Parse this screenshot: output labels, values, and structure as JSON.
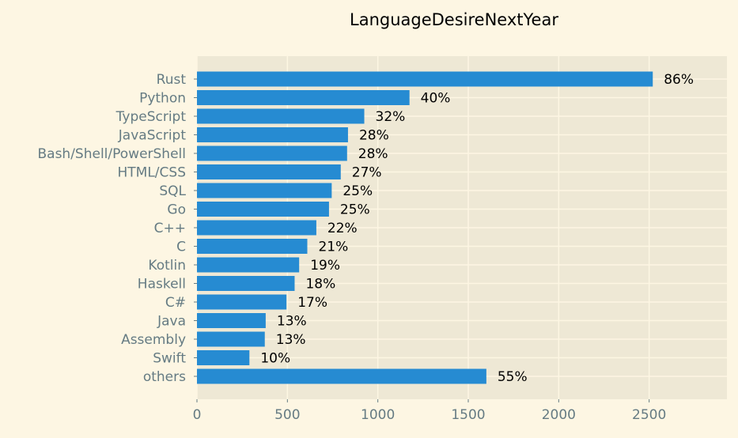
{
  "chart_data": {
    "type": "bar",
    "orientation": "horizontal",
    "title": "LanguageDesireNextYear",
    "xlabel": "",
    "ylabel": "",
    "categories": [
      "Rust",
      "Python",
      "TypeScript",
      "JavaScript",
      "Bash/Shell/PowerShell",
      "HTML/CSS",
      "SQL",
      "Go",
      "C++",
      "C",
      "Kotlin",
      "Haskell",
      "C#",
      "Java",
      "Assembly",
      "Swift",
      "others"
    ],
    "values": [
      2520,
      1175,
      925,
      835,
      830,
      795,
      745,
      730,
      660,
      610,
      565,
      540,
      495,
      380,
      375,
      290,
      1600
    ],
    "data_labels": [
      "86%",
      "40%",
      "32%",
      "28%",
      "28%",
      "27%",
      "25%",
      "25%",
      "22%",
      "21%",
      "19%",
      "18%",
      "17%",
      "13%",
      "13%",
      "10%",
      "55%"
    ],
    "xlim": [
      0,
      2930
    ],
    "xticks": [
      0,
      500,
      1000,
      1500,
      2000,
      2500
    ],
    "xtick_labels": [
      "0",
      "500",
      "1000",
      "1500",
      "2000",
      "2500"
    ],
    "grid": true,
    "colors": {
      "bar": "#268bd2",
      "page_background": "#fdf6e3",
      "plot_background": "#eee8d5",
      "grid": "#fdf6e3",
      "tick_text": "#657b83",
      "label_text": "#000000"
    }
  }
}
